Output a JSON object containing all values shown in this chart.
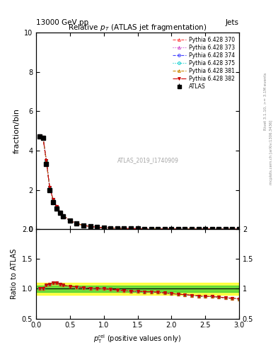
{
  "title": "Relative $p_{T}$ (ATLAS jet fragmentation)",
  "header_left": "13000 GeV pp",
  "header_right": "Jets",
  "ylabel_main": "fraction/bin",
  "ylabel_ratio": "Ratio to ATLAS",
  "watermark": "ATLAS_2019_I1740909",
  "right_label": "Rivet 3.1.10, >= 3.1M events",
  "right_label2": "mcplots.cern.ch [arXiv:1306.3436]",
  "x_data": [
    0.05,
    0.1,
    0.15,
    0.2,
    0.25,
    0.3,
    0.35,
    0.4,
    0.5,
    0.6,
    0.7,
    0.8,
    0.9,
    1.0,
    1.1,
    1.2,
    1.3,
    1.4,
    1.5,
    1.6,
    1.7,
    1.8,
    1.9,
    2.0,
    2.1,
    2.2,
    2.3,
    2.4,
    2.5,
    2.6,
    2.7,
    2.8,
    2.9,
    3.0
  ],
  "atlas_y": [
    4.7,
    4.65,
    3.3,
    1.97,
    1.38,
    1.05,
    0.82,
    0.65,
    0.42,
    0.28,
    0.19,
    0.14,
    0.1,
    0.075,
    0.058,
    0.045,
    0.037,
    0.03,
    0.026,
    0.021,
    0.019,
    0.016,
    0.014,
    0.013,
    0.012,
    0.011,
    0.01,
    0.009,
    0.009,
    0.008,
    0.008,
    0.007,
    0.007,
    0.007
  ],
  "atlas_err": [
    0.05,
    0.05,
    0.04,
    0.03,
    0.02,
    0.015,
    0.012,
    0.01,
    0.008,
    0.005,
    0.004,
    0.003,
    0.003,
    0.002,
    0.002,
    0.001,
    0.001,
    0.001,
    0.001,
    0.001,
    0.001,
    0.001,
    0.001,
    0.001,
    0.001,
    0.001,
    0.001,
    0.001,
    0.001,
    0.001,
    0.001,
    0.001,
    0.001,
    0.001
  ],
  "series": [
    {
      "label": "Pythia 6.428 370",
      "color": "#ff4444",
      "linestyle": "--",
      "marker": "^",
      "markerfacecolor": "none"
    },
    {
      "label": "Pythia 6.428 373",
      "color": "#cc44cc",
      "linestyle": ":",
      "marker": "^",
      "markerfacecolor": "none"
    },
    {
      "label": "Pythia 6.428 374",
      "color": "#4444ff",
      "linestyle": "--",
      "marker": "o",
      "markerfacecolor": "none"
    },
    {
      "label": "Pythia 6.428 375",
      "color": "#00cccc",
      "linestyle": ":",
      "marker": "o",
      "markerfacecolor": "none"
    },
    {
      "label": "Pythia 6.428 381",
      "color": "#cc8800",
      "linestyle": "--",
      "marker": "^",
      "markerfacecolor": "none"
    },
    {
      "label": "Pythia 6.428 382",
      "color": "#cc0000",
      "linestyle": "-.",
      "marker": "v",
      "markerfacecolor": "#cc0000"
    }
  ],
  "ratio_data": [
    [
      1.01,
      1.01,
      1.06,
      1.08,
      1.1,
      1.1,
      1.08,
      1.06,
      1.04,
      1.03,
      1.02,
      1.01,
      1.005,
      1.0,
      0.99,
      0.98,
      0.97,
      0.96,
      0.96,
      0.95,
      0.95,
      0.94,
      0.93,
      0.92,
      0.91,
      0.9,
      0.89,
      0.88,
      0.87,
      0.87,
      0.86,
      0.85,
      0.84,
      0.83
    ],
    [
      1.01,
      1.01,
      1.06,
      1.08,
      1.1,
      1.1,
      1.08,
      1.06,
      1.04,
      1.03,
      1.02,
      1.01,
      1.005,
      1.0,
      0.99,
      0.98,
      0.97,
      0.96,
      0.96,
      0.95,
      0.95,
      0.94,
      0.93,
      0.92,
      0.91,
      0.9,
      0.89,
      0.88,
      0.87,
      0.87,
      0.86,
      0.85,
      0.84,
      0.83
    ],
    [
      1.01,
      1.01,
      1.06,
      1.08,
      1.1,
      1.1,
      1.08,
      1.06,
      1.04,
      1.03,
      1.02,
      1.01,
      1.005,
      1.0,
      0.99,
      0.98,
      0.97,
      0.96,
      0.96,
      0.95,
      0.95,
      0.94,
      0.93,
      0.92,
      0.91,
      0.9,
      0.89,
      0.88,
      0.87,
      0.87,
      0.86,
      0.85,
      0.84,
      0.83
    ],
    [
      1.01,
      1.01,
      1.06,
      1.08,
      1.1,
      1.1,
      1.08,
      1.06,
      1.04,
      1.03,
      1.02,
      1.01,
      1.005,
      1.0,
      0.99,
      0.98,
      0.97,
      0.96,
      0.96,
      0.95,
      0.95,
      0.94,
      0.93,
      0.92,
      0.91,
      0.9,
      0.89,
      0.88,
      0.87,
      0.87,
      0.86,
      0.85,
      0.84,
      0.83
    ],
    [
      1.01,
      1.01,
      1.06,
      1.08,
      1.1,
      1.1,
      1.08,
      1.06,
      1.04,
      1.03,
      1.02,
      1.01,
      1.005,
      1.0,
      0.99,
      0.98,
      0.97,
      0.96,
      0.96,
      0.95,
      0.95,
      0.94,
      0.93,
      0.92,
      0.91,
      0.9,
      0.89,
      0.88,
      0.87,
      0.87,
      0.86,
      0.85,
      0.84,
      0.83
    ],
    [
      1.01,
      1.01,
      1.06,
      1.08,
      1.1,
      1.1,
      1.08,
      1.06,
      1.04,
      1.03,
      1.02,
      1.01,
      1.005,
      1.0,
      0.99,
      0.98,
      0.97,
      0.96,
      0.96,
      0.95,
      0.95,
      0.94,
      0.93,
      0.92,
      0.91,
      0.9,
      0.89,
      0.88,
      0.87,
      0.87,
      0.86,
      0.85,
      0.84,
      0.83
    ]
  ],
  "xlim": [
    0,
    3
  ],
  "ylim_main": [
    0,
    10
  ],
  "ylim_ratio": [
    0.5,
    2.0
  ],
  "yticks_main": [
    0,
    2,
    4,
    6,
    8,
    10
  ],
  "yticks_ratio": [
    0.5,
    1.0,
    1.5,
    2.0
  ],
  "background_color": "#ffffff"
}
